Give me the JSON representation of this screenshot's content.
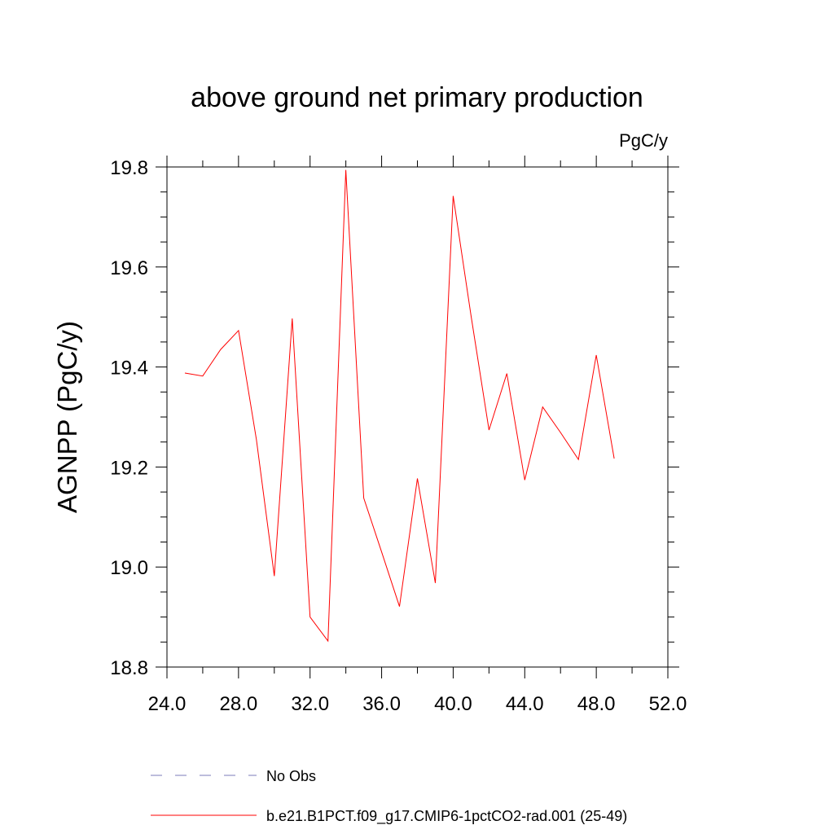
{
  "chart_data": {
    "type": "line",
    "title": "above ground net primary production",
    "units": "PgC/y",
    "xlabel": "",
    "ylabel": "AGNPP  (PgC/y)",
    "xlim": [
      24.0,
      52.0
    ],
    "ylim": [
      18.8,
      19.8
    ],
    "x_ticks": [
      "24.0",
      "28.0",
      "32.0",
      "36.0",
      "40.0",
      "44.0",
      "48.0",
      "52.0"
    ],
    "y_ticks": [
      "18.8",
      "19.0",
      "19.2",
      "19.4",
      "19.6",
      "19.8"
    ],
    "series": [
      {
        "name": "b.e21.B1PCT.f09_g17.CMIP6-1pctCO2-rad.001 (25-49)",
        "color": "#ff0000",
        "x": [
          25,
          26,
          27,
          28,
          29,
          30,
          31,
          32,
          33,
          34,
          35,
          36,
          37,
          38,
          39,
          40,
          41,
          42,
          43,
          44,
          45,
          46,
          47,
          48,
          49
        ],
        "y": [
          19.388,
          19.382,
          19.435,
          19.473,
          19.255,
          18.982,
          19.497,
          18.9,
          18.852,
          19.794,
          19.138,
          19.03,
          18.921,
          19.177,
          18.968,
          19.742,
          19.502,
          19.274,
          19.387,
          19.174,
          19.32,
          19.269,
          19.215,
          19.424,
          19.217
        ]
      }
    ],
    "legend": [
      {
        "label": "No Obs",
        "color": "#7b7bb8",
        "style": "dashed"
      },
      {
        "label": "b.e21.B1PCT.f09_g17.CMIP6-1pctCO2-rad.001 (25-49)",
        "color": "#ff0000",
        "style": "solid"
      }
    ],
    "legend_placement": "bottom",
    "grid": false
  }
}
